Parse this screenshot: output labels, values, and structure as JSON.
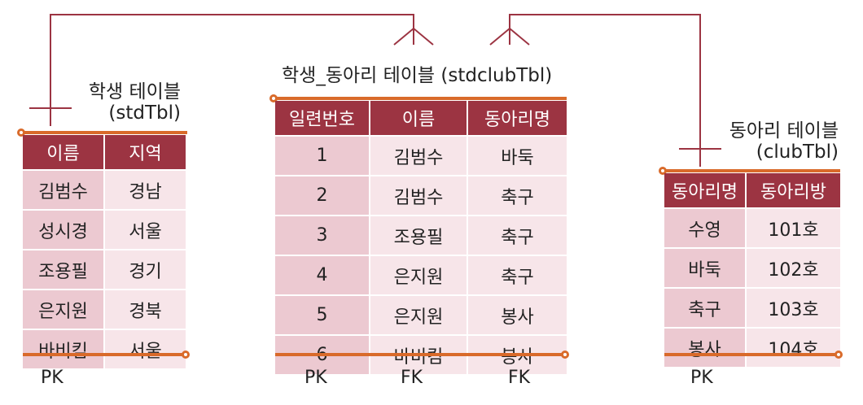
{
  "student_table": {
    "title_line1": "학생 테이블",
    "title_line2": "(stdTbl)",
    "columns": [
      "이름",
      "지역"
    ],
    "rows": [
      [
        "김범수",
        "경남"
      ],
      [
        "성시경",
        "서울"
      ],
      [
        "조용필",
        "경기"
      ],
      [
        "은지원",
        "경북"
      ],
      [
        "바비킴",
        "서울"
      ]
    ],
    "keys": [
      "PK"
    ]
  },
  "student_club_table": {
    "title": "학생_동아리 테이블 (stdclubTbl)",
    "columns": [
      "일련번호",
      "이름",
      "동아리명"
    ],
    "rows": [
      [
        "1",
        "김범수",
        "바둑"
      ],
      [
        "2",
        "김범수",
        "축구"
      ],
      [
        "3",
        "조용필",
        "축구"
      ],
      [
        "4",
        "은지원",
        "축구"
      ],
      [
        "5",
        "은지원",
        "봉사"
      ],
      [
        "6",
        "바비킴",
        "봉사"
      ]
    ],
    "keys": [
      "PK",
      "FK",
      "FK"
    ]
  },
  "club_table": {
    "title_line1": "동아리 테이블",
    "title_line2": "(clubTbl)",
    "columns": [
      "동아리명",
      "동아리방"
    ],
    "rows": [
      [
        "수영",
        "101호"
      ],
      [
        "바둑",
        "102호"
      ],
      [
        "축구",
        "103호"
      ],
      [
        "봉사",
        "104호"
      ]
    ],
    "keys": [
      "PK"
    ]
  },
  "colors": {
    "header": "#9c3442",
    "cell_dark": "#ecc9d1",
    "cell_light": "#f7e5e9",
    "accent": "#d96a2a",
    "connector": "#9c3442"
  }
}
